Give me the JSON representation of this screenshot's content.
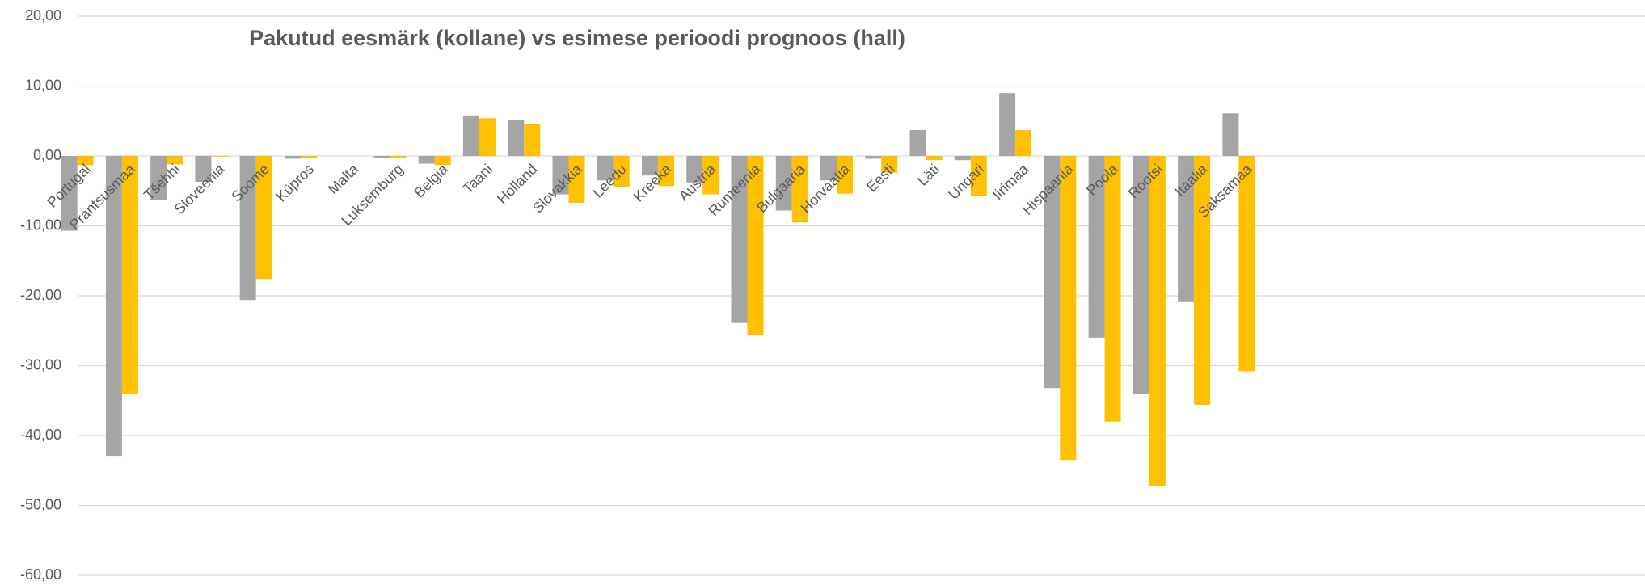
{
  "chart_data": {
    "type": "bar",
    "title": "Pakutud eesmärk (kollane) vs esimese perioodi prognoos (hall)",
    "categories": [
      "Portugal",
      "Prantsusmaa",
      "Tšehhi",
      "Sloveenia",
      "Soome",
      "Küpros",
      "Malta",
      "Luksemburg",
      "Belgia",
      "Taani",
      "Holland",
      "Slovakkia",
      "Leedu",
      "Kreeka",
      "Austria",
      "Rumeenia",
      "Bulgaaria",
      "Horvaatia",
      "Eesti",
      "Läti",
      "Ungari",
      "Iirimaa",
      "Hispaania",
      "Poola",
      "Rootsi",
      "Itaalia",
      "Saksamaa"
    ],
    "series": [
      {
        "color": "#a5a5a5",
        "values": [
          -10.7,
          -42.9,
          -6.3,
          -3.7,
          -20.6,
          -0.4,
          0,
          -0.3,
          -1.1,
          5.8,
          5.1,
          -5.5,
          -3.5,
          -2.8,
          -3.8,
          -23.9,
          -7.8,
          -3.5,
          -0.4,
          3.7,
          -0.6,
          9.0,
          -33.2,
          -26.0,
          -34.0,
          -20.9,
          6.1
        ]
      },
      {
        "color": "#ffc000",
        "values": [
          -1.3,
          -34.0,
          -1.2,
          -0.1,
          -17.6,
          -0.3,
          0,
          -0.3,
          -1.3,
          5.4,
          4.6,
          -6.7,
          -4.5,
          -4.3,
          -5.5,
          -25.6,
          -9.5,
          -5.4,
          -2.4,
          -0.6,
          -5.7,
          3.7,
          -43.5,
          -38.0,
          -47.2,
          -35.6,
          -30.8
        ]
      }
    ],
    "ylim": [
      -60,
      20
    ],
    "yticks": [
      {
        "value": 20,
        "label": "20,00"
      },
      {
        "value": 10,
        "label": "10,00"
      },
      {
        "value": 0,
        "label": "0,00"
      },
      {
        "value": -10,
        "label": "-10,00"
      },
      {
        "value": -20,
        "label": "-20,00"
      },
      {
        "value": -30,
        "label": "-30,00"
      },
      {
        "value": -40,
        "label": "-40,00"
      },
      {
        "value": -50,
        "label": "-50,00"
      },
      {
        "value": -60,
        "label": "-60,00"
      }
    ],
    "grid": true
  }
}
